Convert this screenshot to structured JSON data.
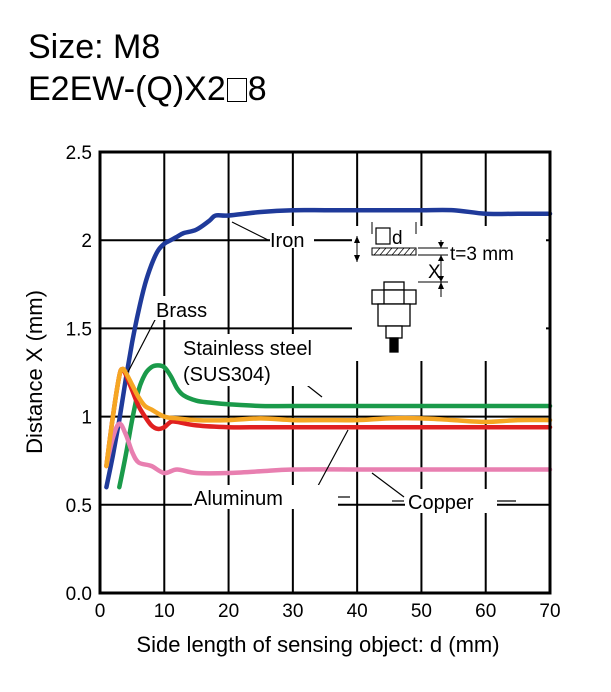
{
  "header": {
    "size_label": "Size: M8",
    "model_prefix": "E2EW-(Q)X2",
    "model_suffix": "8"
  },
  "chart_data": {
    "type": "line",
    "xlabel": "Side length of sensing object: d (mm)",
    "ylabel": "Distance X (mm)",
    "xlim": [
      0,
      70
    ],
    "ylim": [
      0,
      2.5
    ],
    "x_ticks": [
      "0",
      "10",
      "20",
      "30",
      "40",
      "50",
      "60",
      "70"
    ],
    "y_ticks": [
      "0.0",
      "0.5",
      "1",
      "1.5",
      "2",
      "2.5"
    ],
    "grid": true,
    "series": [
      {
        "name": "Iron",
        "color": "#1f3a9a",
        "x": [
          1,
          2,
          3,
          4,
          5,
          6,
          7,
          8,
          9,
          10,
          11,
          12,
          13,
          15,
          17,
          18,
          20,
          25,
          30,
          35,
          40,
          45,
          50,
          55,
          60,
          65,
          70
        ],
        "y": [
          0.6,
          0.78,
          0.98,
          1.21,
          1.42,
          1.6,
          1.75,
          1.86,
          1.94,
          1.98,
          2.0,
          2.02,
          2.04,
          2.06,
          2.11,
          2.14,
          2.14,
          2.16,
          2.17,
          2.17,
          2.17,
          2.17,
          2.17,
          2.17,
          2.15,
          2.15,
          2.15
        ]
      },
      {
        "name": "Brass",
        "color": "#f5a623",
        "x": [
          1,
          2,
          3,
          3.5,
          4,
          5,
          6,
          7,
          8,
          10,
          12,
          15,
          20,
          25,
          30,
          35,
          40,
          45,
          50,
          55,
          60,
          65,
          70
        ],
        "y": [
          0.72,
          1.0,
          1.23,
          1.27,
          1.25,
          1.18,
          1.11,
          1.06,
          1.04,
          1.0,
          0.99,
          0.98,
          0.98,
          0.99,
          0.98,
          0.98,
          0.98,
          0.99,
          0.99,
          0.98,
          0.97,
          0.98,
          0.98
        ]
      },
      {
        "name": "Stainless steel (SUS304)",
        "color": "#1a9a4a",
        "x": [
          3,
          4,
          5,
          6,
          7,
          8,
          9,
          10,
          11,
          12,
          13,
          15,
          17,
          20,
          25,
          30,
          40,
          50,
          60,
          70
        ],
        "y": [
          0.6,
          0.78,
          0.98,
          1.15,
          1.24,
          1.28,
          1.29,
          1.28,
          1.23,
          1.16,
          1.12,
          1.09,
          1.08,
          1.07,
          1.06,
          1.06,
          1.06,
          1.06,
          1.06,
          1.06
        ]
      },
      {
        "name": "Aluminum",
        "color": "#e02020",
        "x": [
          1,
          2,
          3,
          3.5,
          4,
          5,
          6,
          7,
          8,
          9,
          10,
          11,
          12,
          15,
          20,
          25,
          30,
          35,
          40,
          50,
          60,
          70
        ],
        "y": [
          0.72,
          1.0,
          1.23,
          1.27,
          1.24,
          1.15,
          1.06,
          1.0,
          0.95,
          0.93,
          0.94,
          0.97,
          0.97,
          0.95,
          0.94,
          0.94,
          0.94,
          0.94,
          0.94,
          0.94,
          0.94,
          0.94
        ]
      },
      {
        "name": "Copper",
        "color": "#e87fb0",
        "x": [
          1,
          2,
          3,
          4,
          5,
          6,
          8,
          10,
          12,
          15,
          20,
          25,
          30,
          40,
          50,
          60,
          70
        ],
        "y": [
          0.72,
          0.88,
          0.96,
          0.9,
          0.8,
          0.74,
          0.72,
          0.68,
          0.7,
          0.68,
          0.68,
          0.69,
          0.7,
          0.7,
          0.7,
          0.7,
          0.7
        ]
      }
    ],
    "annotations": {
      "iron": "Iron",
      "brass": "Brass",
      "stainless_line1": "Stainless steel",
      "stainless_line2": "(SUS304)",
      "aluminum": "Aluminum",
      "copper": "Copper"
    },
    "inset": {
      "d_label": "d",
      "x_label": "X",
      "t_label": "t=3 mm"
    }
  }
}
